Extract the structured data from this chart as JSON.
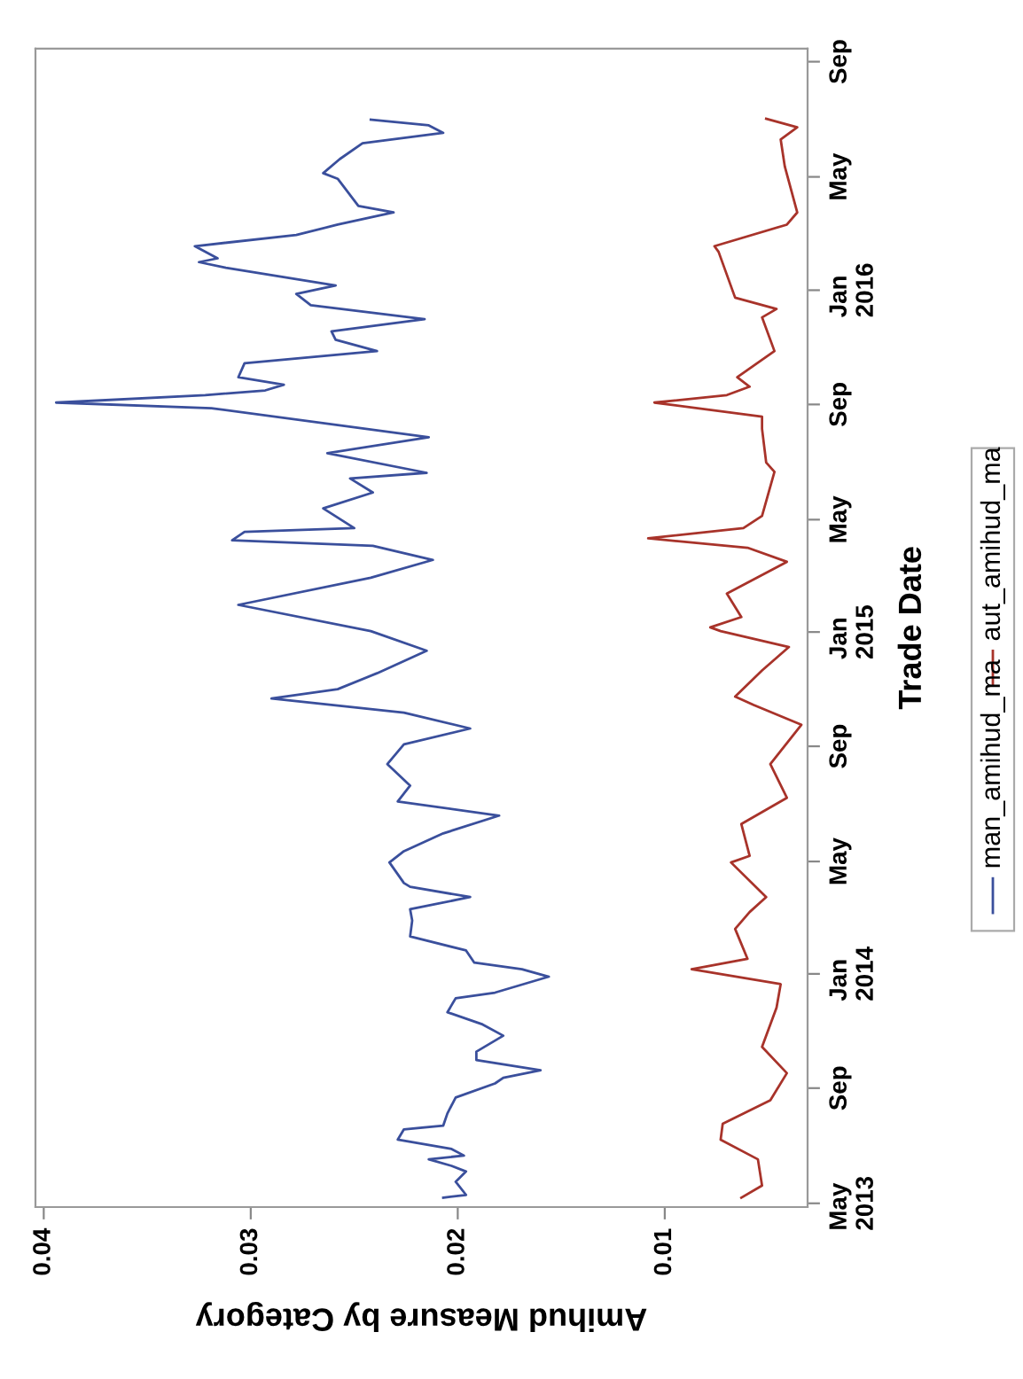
{
  "chart_data": {
    "type": "line",
    "orientation": "horizontal",
    "ylabel": "Trade Date",
    "xlabel": "Amihud Measure by Category",
    "ylim": [
      "2013-04-27",
      "2016-09-15"
    ],
    "yticks": [
      {
        "value": "2013-05-01",
        "label": "May\n2013"
      },
      {
        "value": "2013-09-01",
        "label": "Sep"
      },
      {
        "value": "2014-01-01",
        "label": "Jan\n2014"
      },
      {
        "value": "2014-05-01",
        "label": "May"
      },
      {
        "value": "2014-09-01",
        "label": "Sep"
      },
      {
        "value": "2015-01-01",
        "label": "Jan\n2015"
      },
      {
        "value": "2015-05-01",
        "label": "May"
      },
      {
        "value": "2015-09-01",
        "label": "Sep"
      },
      {
        "value": "2016-01-01",
        "label": "Jan\n2016"
      },
      {
        "value": "2016-05-01",
        "label": "May"
      },
      {
        "value": "2016-09-01",
        "label": "Sep"
      }
    ],
    "xlim": [
      0.0404,
      0.0031
    ],
    "xticks": [
      0.04,
      0.03,
      0.02,
      0.01
    ],
    "grid": false,
    "legend": "right",
    "marker": "none",
    "line_style": "solid",
    "series": [
      {
        "name": "man_amihud_ma",
        "color": "#3a4f9c",
        "x": [
          "2013-05-07",
          "2013-05-10",
          "2013-05-24",
          "2013-06-04",
          "2013-06-10",
          "2013-06-17",
          "2013-06-21",
          "2013-06-28",
          "2013-07-08",
          "2013-07-19",
          "2013-07-23",
          "2013-08-05",
          "2013-08-22",
          "2013-09-06",
          "2013-09-12",
          "2013-09-20",
          "2013-10-01",
          "2013-10-10",
          "2013-10-27",
          "2013-11-08",
          "2013-11-21",
          "2013-12-06",
          "2013-12-12",
          "2013-12-29",
          "2014-01-06",
          "2014-01-13",
          "2014-01-26",
          "2014-02-10",
          "2014-02-27",
          "2014-03-11",
          "2014-03-24",
          "2014-04-04",
          "2014-04-08",
          "2014-04-30",
          "2014-05-12",
          "2014-05-31",
          "2014-06-19",
          "2014-07-04",
          "2014-07-21",
          "2014-08-13",
          "2014-09-03",
          "2014-09-20",
          "2014-10-07",
          "2014-10-22",
          "2014-11-01",
          "2014-11-18",
          "2014-12-12",
          "2015-01-02",
          "2015-01-30",
          "2015-02-28",
          "2015-03-19",
          "2015-04-03",
          "2015-04-09",
          "2015-04-18",
          "2015-04-22",
          "2015-05-13",
          "2015-05-30",
          "2015-06-14",
          "2015-06-20",
          "2015-07-11",
          "2015-07-28",
          "2015-08-28",
          "2015-09-03",
          "2015-09-11",
          "2015-09-16",
          "2015-09-22",
          "2015-09-30",
          "2015-10-15",
          "2015-10-28",
          "2015-11-09",
          "2015-11-18",
          "2015-12-01",
          "2015-12-16",
          "2015-12-28",
          "2016-01-06",
          "2016-01-25",
          "2016-01-31",
          "2016-02-04",
          "2016-02-17",
          "2016-02-29",
          "2016-03-11",
          "2016-03-24",
          "2016-03-31",
          "2016-04-29",
          "2016-05-05",
          "2016-05-20",
          "2016-06-06",
          "2016-06-17",
          "2016-06-25",
          "2016-07-01"
        ],
        "values": [
          0.0207,
          0.0196,
          0.0201,
          0.0196,
          0.0203,
          0.0214,
          0.0197,
          0.0203,
          0.0229,
          0.0226,
          0.0207,
          0.0205,
          0.0201,
          0.0182,
          0.0178,
          0.016,
          0.0191,
          0.0191,
          0.0178,
          0.0188,
          0.0205,
          0.0201,
          0.0182,
          0.0156,
          0.0169,
          0.0192,
          0.0196,
          0.0223,
          0.0222,
          0.0223,
          0.0194,
          0.0223,
          0.0226,
          0.0233,
          0.0226,
          0.0207,
          0.018,
          0.0229,
          0.0223,
          0.0234,
          0.0226,
          0.0194,
          0.0226,
          0.029,
          0.0258,
          0.0239,
          0.0215,
          0.0242,
          0.0306,
          0.0242,
          0.0212,
          0.0241,
          0.0309,
          0.0303,
          0.025,
          0.0265,
          0.0241,
          0.0252,
          0.0215,
          0.0263,
          0.0214,
          0.0319,
          0.0394,
          0.0322,
          0.0293,
          0.0284,
          0.0306,
          0.0303,
          0.0239,
          0.0259,
          0.0261,
          0.0216,
          0.0271,
          0.0278,
          0.0259,
          0.0312,
          0.0325,
          0.0316,
          0.0327,
          0.0278,
          0.0258,
          0.0231,
          0.0248,
          0.0258,
          0.0265,
          0.0257,
          0.0246,
          0.0207,
          0.0214,
          0.0242
        ]
      },
      {
        "name": "aut_amihud_ma",
        "color": "#a8332a",
        "x": [
          "2013-05-07",
          "2013-05-20",
          "2013-06-17",
          "2013-07-08",
          "2013-07-25",
          "2013-08-19",
          "2013-09-17",
          "2013-10-15",
          "2013-11-26",
          "2013-12-21",
          "2014-01-06",
          "2014-01-17",
          "2014-02-18",
          "2014-03-08",
          "2014-03-24",
          "2014-04-30",
          "2014-05-07",
          "2014-06-10",
          "2014-07-08",
          "2014-08-13",
          "2014-09-24",
          "2014-10-15",
          "2014-10-24",
          "2014-11-21",
          "2014-12-16",
          "2015-01-02",
          "2015-01-06",
          "2015-01-17",
          "2015-02-11",
          "2015-03-17",
          "2015-04-01",
          "2015-04-11",
          "2015-04-22",
          "2015-05-05",
          "2015-06-21",
          "2015-07-01",
          "2015-08-06",
          "2015-08-19",
          "2015-09-03",
          "2015-09-11",
          "2015-09-20",
          "2015-09-30",
          "2015-10-28",
          "2015-12-03",
          "2015-12-12",
          "2015-12-24",
          "2016-02-11",
          "2016-02-17",
          "2016-03-11",
          "2016-03-24",
          "2016-05-12",
          "2016-06-10",
          "2016-06-23",
          "2016-07-02"
        ],
        "values": [
          0.0063,
          0.0053,
          0.0055,
          0.0073,
          0.0072,
          0.0049,
          0.0041,
          0.0053,
          0.0046,
          0.0044,
          0.0087,
          0.006,
          0.0066,
          0.0059,
          0.0051,
          0.0068,
          0.0059,
          0.0063,
          0.0041,
          0.0049,
          0.0034,
          0.0057,
          0.0066,
          0.0053,
          0.004,
          0.0073,
          0.0078,
          0.0063,
          0.007,
          0.0041,
          0.006,
          0.0108,
          0.0062,
          0.0053,
          0.0047,
          0.0051,
          0.0053,
          0.0053,
          0.0105,
          0.007,
          0.0059,
          0.0065,
          0.0047,
          0.0053,
          0.0046,
          0.0066,
          0.0074,
          0.0076,
          0.0041,
          0.0036,
          0.0042,
          0.0044,
          0.0036,
          0.0051
        ]
      }
    ]
  }
}
